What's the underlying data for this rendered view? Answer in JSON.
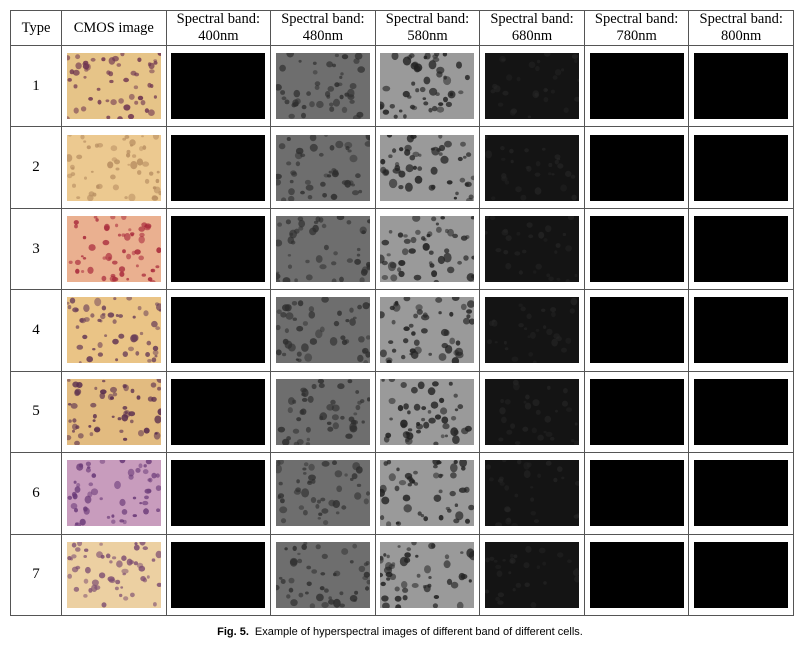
{
  "table": {
    "headers": [
      {
        "line1": "Type",
        "line2": ""
      },
      {
        "line1": "CMOS image",
        "line2": ""
      },
      {
        "line1": "Spectral band:",
        "line2": "400nm"
      },
      {
        "line1": "Spectral band:",
        "line2": "480nm"
      },
      {
        "line1": "Spectral band:",
        "line2": "580nm"
      },
      {
        "line1": "Spectral band:",
        "line2": "680nm"
      },
      {
        "line1": "Spectral band:",
        "line2": "780nm"
      },
      {
        "line1": "Spectral band:",
        "line2": "800nm"
      }
    ],
    "rows": [
      {
        "type": "1",
        "cmos": {
          "bg": "#e6c488",
          "cell": "#6e3450"
        }
      },
      {
        "type": "2",
        "cmos": {
          "bg": "#ecc990",
          "cell": "#b88f62"
        }
      },
      {
        "type": "3",
        "cmos": {
          "bg": "#eab090",
          "cell": "#a8283a"
        }
      },
      {
        "type": "4",
        "cmos": {
          "bg": "#eac486",
          "cell": "#6a3e58"
        }
      },
      {
        "type": "5",
        "cmos": {
          "bg": "#e2bb80",
          "cell": "#5a2e4e"
        }
      },
      {
        "type": "6",
        "cmos": {
          "bg": "#c89cbd",
          "cell": "#6a3a78"
        }
      },
      {
        "type": "7",
        "cmos": {
          "bg": "#ecd0a2",
          "cell": "#7a4a70"
        }
      }
    ]
  },
  "colors": {
    "band_480_bg": "#6e6e6e",
    "band_480_cell": "#2e2e2e",
    "band_580_bg": "#9a9a9a",
    "band_580_cell": "#222222",
    "band_680_bg": "#141414",
    "dark_band_bg": "#000000"
  },
  "caption": {
    "label": "Fig. 5.",
    "text": "Example of hyperspectral images of different band of different cells."
  }
}
